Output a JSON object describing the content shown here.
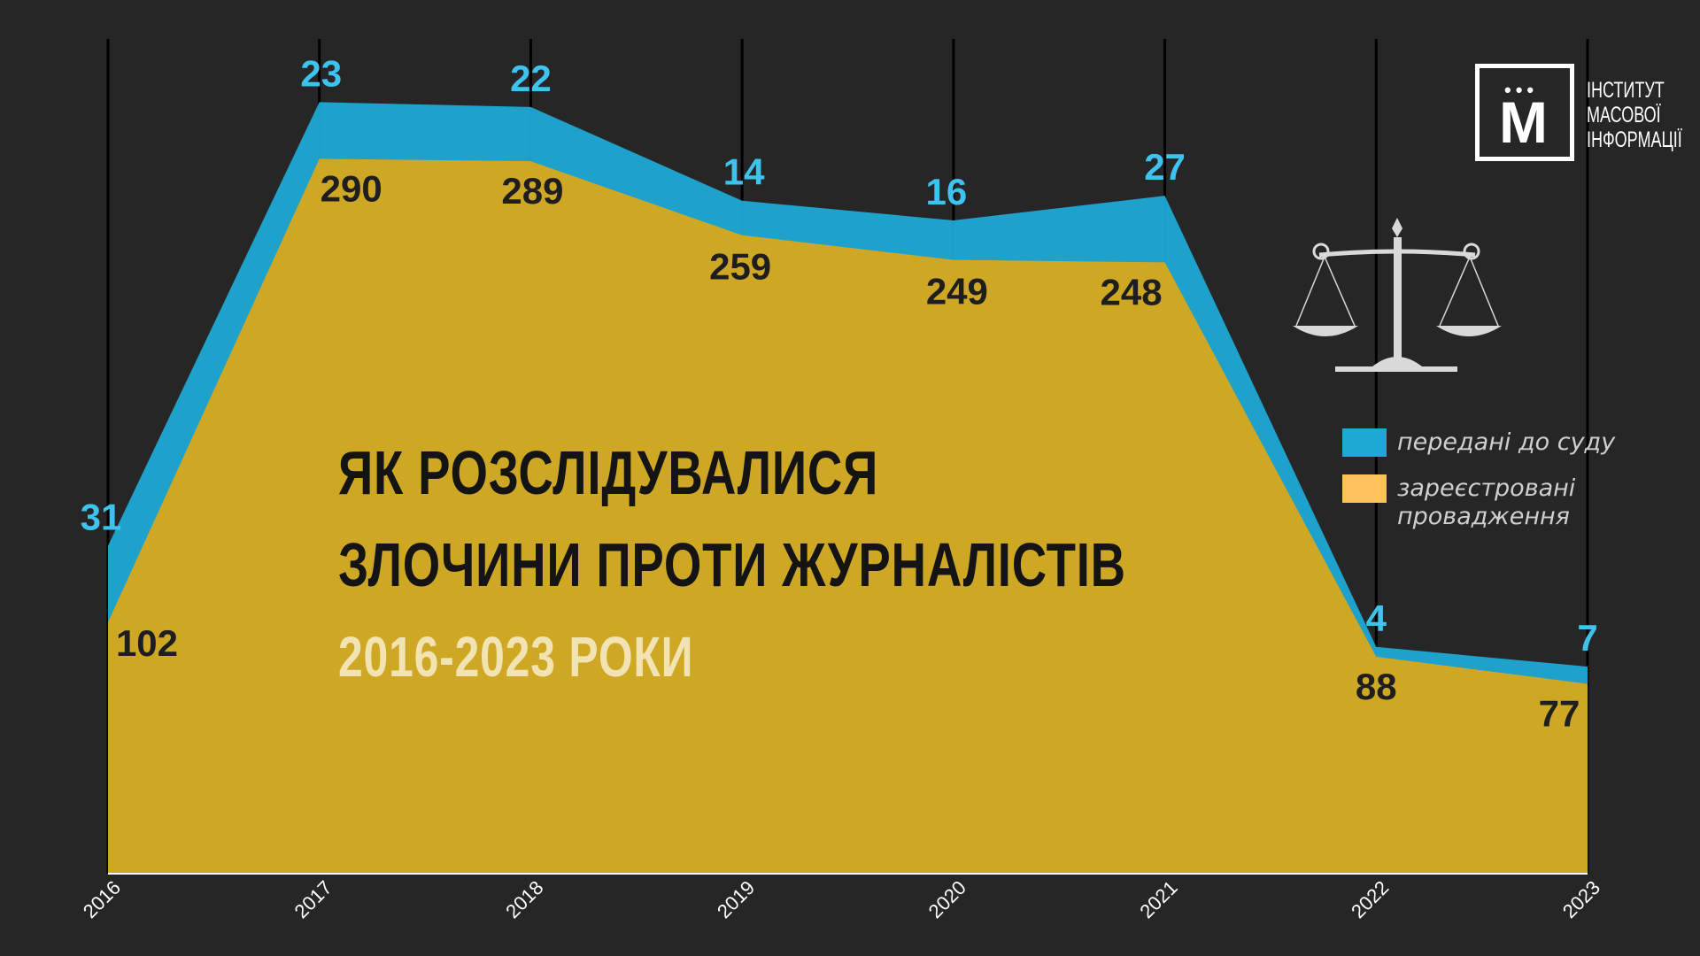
{
  "chart_data": {
    "type": "area",
    "title": "ЯК РОЗСЛІДУВАЛИСЯ\nЗЛОЧИНИ ПРОТИ ЖУРНАЛІСТІВ",
    "subtitle": "2016-2023 РОКИ",
    "x": [
      "2016",
      "2017",
      "2018",
      "2019",
      "2020",
      "2021",
      "2022",
      "2023"
    ],
    "series": [
      {
        "name": "зареєстровані провадження",
        "values": [
          102,
          290,
          289,
          259,
          249,
          248,
          88,
          77
        ],
        "color": "#d4a81e"
      },
      {
        "name": "передані до суду",
        "values": [
          31,
          23,
          22,
          14,
          16,
          27,
          4,
          7
        ],
        "color": "#1ea8d4"
      }
    ],
    "stacked": true,
    "ylim": [
      0,
      330
    ],
    "grid": "vertical",
    "legend_position": "right"
  },
  "title": {
    "line1": "ЯК РОЗСЛІДУВАЛИСЯ",
    "line2": "ЗЛОЧИНИ ПРОТИ ЖУРНАЛІСТІВ",
    "subtitle": "2016-2023 РОКИ"
  },
  "legend": {
    "court_label": "передані до суду",
    "registered_line1": "зареєстровані",
    "registered_line2": "провадження",
    "court_color": "#1ea8d4",
    "registered_color": "#fcc25a"
  },
  "logo": {
    "letter": "М",
    "dots": "•••",
    "line1": "ІНСТИТУТ",
    "line2": "МАСОВОЇ",
    "line3": "ІНФОРМАЦІЇ"
  },
  "icons": {
    "scales": "scales-of-justice-icon"
  }
}
